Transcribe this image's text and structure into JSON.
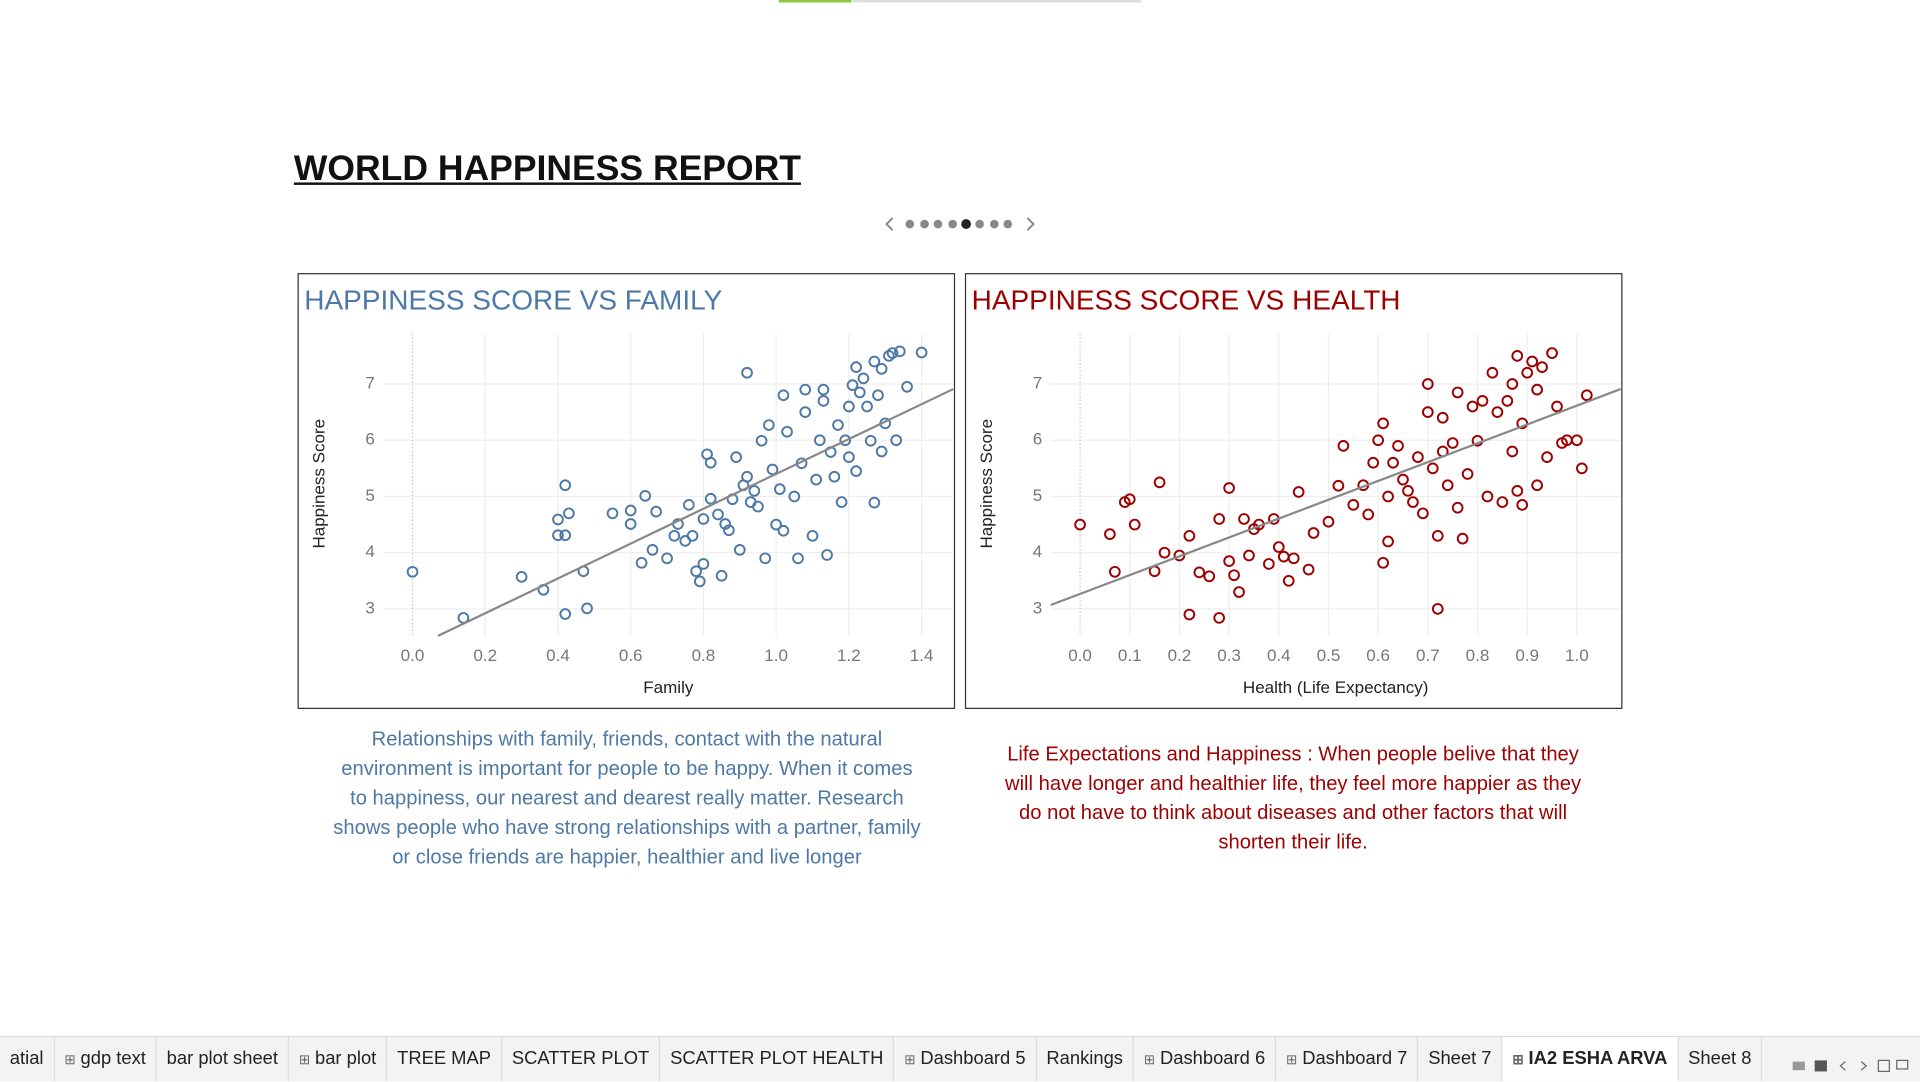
{
  "title": "WORLD HAPPINESS REPORT",
  "chart_data": [
    {
      "type": "scatter",
      "title": "HAPPINESS SCORE VS FAMILY",
      "x_label": "Family",
      "y_label": "Happiness Score",
      "color": "#4e79a7",
      "grid": true,
      "xlim": [
        -0.08,
        1.487
      ],
      "ylim": [
        2.52,
        7.89
      ],
      "xticks": [
        {
          "value": 0,
          "label": "0.0"
        },
        0.2,
        0.4,
        0.6,
        0.8,
        {
          "value": 1,
          "label": "1.0"
        },
        1.2,
        1.4
      ],
      "yticks": [
        3,
        4,
        5,
        6,
        7
      ],
      "x": [
        0,
        0.14,
        0.3,
        0.36,
        0.4,
        0.4,
        0.42,
        0.42,
        0.43,
        0.42,
        0.47,
        0.48,
        0.55,
        0.6,
        0.6,
        0.63,
        0.64,
        0.66,
        0.67,
        0.7,
        0.72,
        0.73,
        0.75,
        0.76,
        0.77,
        0.78,
        0.79,
        0.8,
        0.8,
        0.81,
        0.82,
        0.82,
        0.84,
        0.85,
        0.86,
        0.87,
        0.88,
        0.89,
        0.9,
        0.91,
        0.92,
        0.92,
        0.93,
        0.94,
        0.95,
        0.96,
        0.97,
        0.98,
        0.99,
        1.0,
        1.01,
        1.02,
        1.02,
        1.03,
        1.05,
        1.06,
        1.07,
        1.08,
        1.08,
        1.1,
        1.11,
        1.12,
        1.13,
        1.13,
        1.14,
        1.15,
        1.16,
        1.17,
        1.18,
        1.19,
        1.2,
        1.2,
        1.21,
        1.22,
        1.22,
        1.24,
        1.25,
        1.26,
        1.27,
        1.27,
        1.28,
        1.29,
        1.3,
        1.31,
        1.32,
        1.33,
        1.34,
        1.36,
        1.4,
        1.29,
        1.23
      ],
      "y": [
        3.66,
        2.84,
        3.57,
        3.34,
        4.59,
        4.31,
        4.31,
        5.2,
        4.7,
        2.91,
        3.67,
        3.01,
        4.7,
        4.51,
        4.75,
        3.82,
        5.01,
        4.05,
        4.73,
        3.9,
        4.3,
        4.51,
        4.21,
        4.85,
        4.3,
        3.67,
        3.49,
        3.8,
        4.6,
        5.75,
        4.96,
        5.6,
        4.68,
        3.59,
        4.51,
        4.4,
        4.95,
        5.7,
        4.05,
        5.2,
        5.35,
        7.2,
        4.9,
        5.1,
        4.82,
        5.99,
        3.9,
        6.27,
        5.48,
        4.5,
        5.13,
        6.8,
        4.39,
        6.15,
        5.0,
        3.9,
        5.59,
        6.5,
        6.9,
        4.3,
        5.3,
        6.0,
        6.7,
        6.9,
        3.96,
        5.79,
        5.35,
        6.27,
        4.9,
        6.0,
        5.7,
        6.6,
        6.98,
        7.3,
        5.45,
        7.1,
        6.6,
        5.99,
        4.89,
        7.4,
        6.8,
        7.27,
        6.3,
        7.5,
        7.55,
        6.0,
        7.58,
        6.95,
        7.56,
        5.8,
        6.85
      ],
      "trendline": {
        "x": [
          0.07,
          1.487
        ],
        "y": [
          2.52,
          6.91
        ]
      },
      "caption": [
        "Relationships with family, friends, contact with the natural",
        "environment is important for people to be happy. When it comes",
        "to happiness, our nearest and dearest really matter. Research",
        "shows people who have strong relationships with a partner, family",
        "or close friends are happier, healthier and live longer"
      ]
    },
    {
      "type": "scatter",
      "title": "HAPPINESS SCORE VS HEALTH",
      "x_label": "Health (Life Expectancy)",
      "y_label": "Happiness Score",
      "color": "#9e0000",
      "grid": true,
      "xlim": [
        -0.059,
        1.088
      ],
      "ylim": [
        2.52,
        7.89
      ],
      "xticks": [
        {
          "value": 0,
          "label": "0.0"
        },
        0.1,
        0.2,
        0.3,
        0.4,
        0.5,
        0.6,
        0.7,
        0.8,
        0.9,
        {
          "value": 1,
          "label": "1.0"
        }
      ],
      "yticks": [
        3,
        4,
        5,
        6,
        7
      ],
      "x": [
        0,
        0.07,
        0.06,
        0.09,
        0.1,
        0.11,
        0.15,
        0.16,
        0.17,
        0.2,
        0.22,
        0.22,
        0.24,
        0.26,
        0.28,
        0.28,
        0.3,
        0.3,
        0.31,
        0.32,
        0.33,
        0.34,
        0.35,
        0.36,
        0.38,
        0.39,
        0.4,
        0.41,
        0.42,
        0.43,
        0.44,
        0.46,
        0.47,
        0.5,
        0.52,
        0.53,
        0.55,
        0.57,
        0.58,
        0.59,
        0.6,
        0.61,
        0.61,
        0.62,
        0.62,
        0.63,
        0.64,
        0.65,
        0.66,
        0.67,
        0.68,
        0.69,
        0.7,
        0.7,
        0.71,
        0.72,
        0.72,
        0.73,
        0.73,
        0.74,
        0.75,
        0.76,
        0.76,
        0.77,
        0.78,
        0.79,
        0.8,
        0.81,
        0.82,
        0.83,
        0.84,
        0.85,
        0.86,
        0.87,
        0.87,
        0.88,
        0.89,
        0.9,
        0.91,
        0.92,
        0.92,
        0.93,
        0.94,
        0.95,
        0.96,
        0.97,
        0.98,
        1.0,
        1.01,
        1.02,
        0.89,
        0.88
      ],
      "y": [
        4.5,
        3.66,
        4.33,
        4.9,
        4.95,
        4.5,
        3.67,
        5.25,
        4.0,
        3.95,
        2.9,
        4.3,
        3.65,
        3.58,
        2.84,
        4.6,
        5.15,
        3.85,
        3.6,
        3.3,
        4.6,
        3.95,
        4.42,
        4.5,
        3.8,
        4.6,
        4.1,
        3.93,
        3.5,
        3.9,
        5.08,
        3.7,
        4.35,
        4.55,
        5.19,
        5.9,
        4.85,
        5.2,
        4.68,
        5.6,
        6.0,
        6.3,
        3.82,
        4.2,
        5.0,
        5.6,
        5.9,
        5.3,
        5.1,
        4.9,
        5.7,
        4.7,
        6.5,
        7.0,
        5.5,
        4.3,
        3.0,
        6.4,
        5.8,
        5.2,
        5.95,
        4.8,
        6.85,
        4.25,
        5.4,
        6.6,
        5.99,
        6.7,
        5.0,
        7.2,
        6.5,
        4.9,
        6.7,
        7.0,
        5.8,
        7.5,
        6.3,
        7.2,
        7.4,
        6.9,
        5.2,
        7.3,
        5.7,
        7.55,
        6.6,
        5.95,
        6.0,
        6.0,
        5.5,
        6.8,
        4.85,
        5.1
      ],
      "trendline": {
        "x": [
          -0.059,
          1.088
        ],
        "y": [
          3.07,
          6.91
        ]
      },
      "caption": [
        "Life Expectations and Happiness : When people belive that they",
        "will have longer and healthier life, they feel more happier as they",
        "do not have to think about diseases and other factors that will",
        "shorten their life."
      ]
    }
  ],
  "tabs": [
    "atial",
    "gdp text",
    "bar plot sheet",
    "bar plot",
    "TREE MAP",
    "SCATTER PLOT",
    "SCATTER PLOT HEALTH",
    "Dashboard 5",
    "Rankings",
    "Dashboard 6",
    "Dashboard 7",
    "Sheet 7",
    "IA2 ESHA ARVA",
    "Sheet 8"
  ],
  "tab_icons": [
    false,
    true,
    false,
    true,
    false,
    false,
    false,
    true,
    false,
    true,
    true,
    false,
    true,
    false
  ],
  "active_tab": 12
}
